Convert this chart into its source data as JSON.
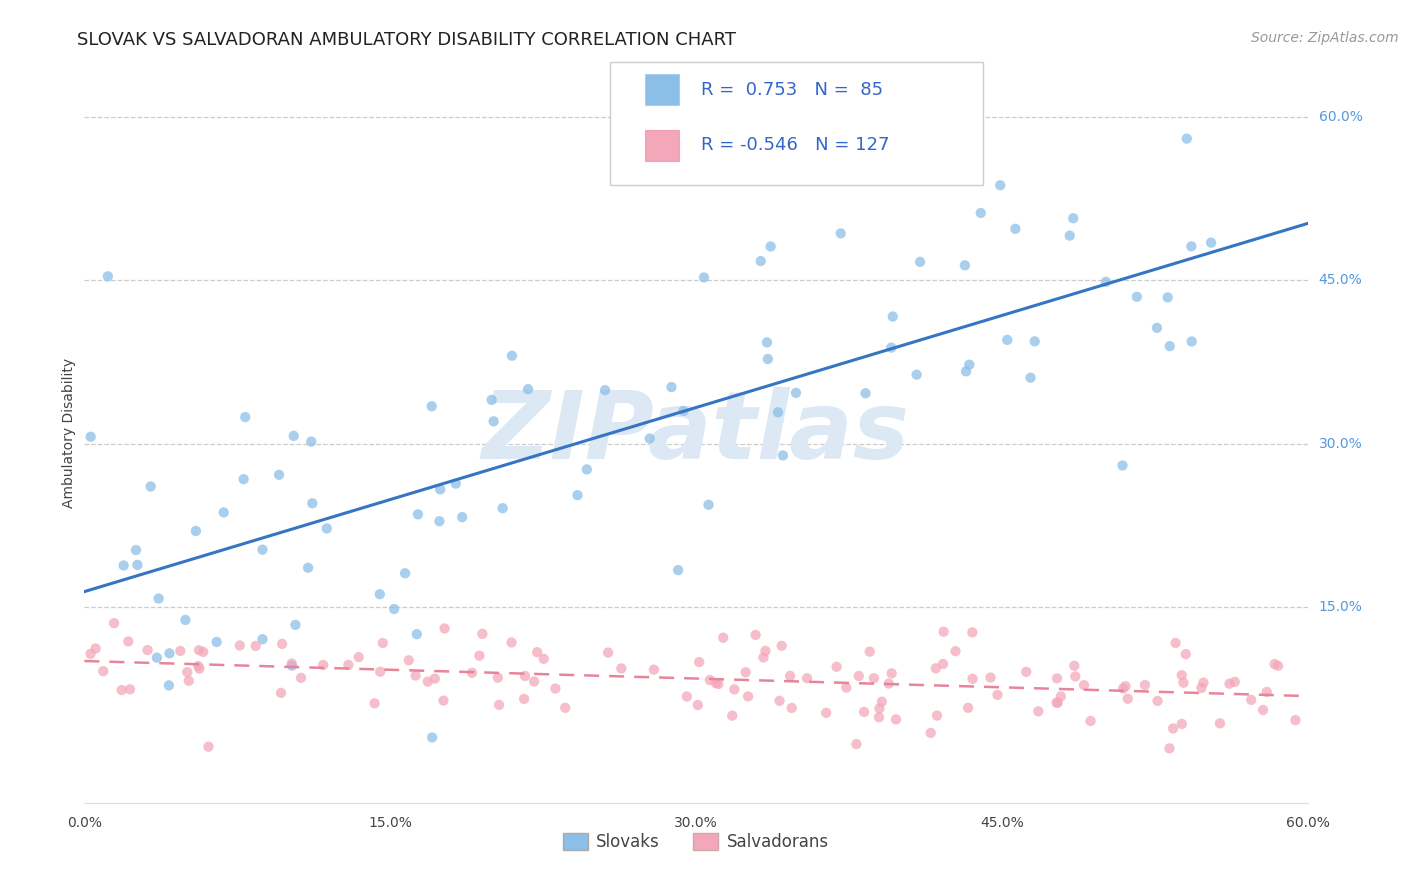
{
  "title": "SLOVAK VS SALVADORAN AMBULATORY DISABILITY CORRELATION CHART",
  "source": "Source: ZipAtlas.com",
  "ylabel": "Ambulatory Disability",
  "xlim": [
    0.0,
    0.6
  ],
  "ylim": [
    -0.03,
    0.65
  ],
  "xtick_labels": [
    "0.0%",
    "15.0%",
    "30.0%",
    "45.0%",
    "60.0%"
  ],
  "xtick_values": [
    0.0,
    0.15,
    0.3,
    0.45,
    0.6
  ],
  "right_ytick_labels": [
    "15.0%",
    "30.0%",
    "45.0%",
    "60.0%"
  ],
  "right_ytick_values": [
    0.15,
    0.3,
    0.45,
    0.6
  ],
  "slovak_color": "#8bbfe8",
  "salvadoran_color": "#f4a7b9",
  "slovak_line_color": "#3575c3",
  "salvadoran_line_color": "#e8849a",
  "slovak_R": 0.753,
  "slovak_N": 85,
  "salvadoran_R": -0.546,
  "salvadoran_N": 127,
  "watermark": "ZIPatlas",
  "background_color": "#ffffff",
  "grid_color": "#cccccc",
  "title_fontsize": 13,
  "axis_label_fontsize": 10,
  "tick_fontsize": 10,
  "legend_fontsize": 13,
  "source_fontsize": 10,
  "right_label_color": "#5599dd",
  "text_color": "#444444"
}
